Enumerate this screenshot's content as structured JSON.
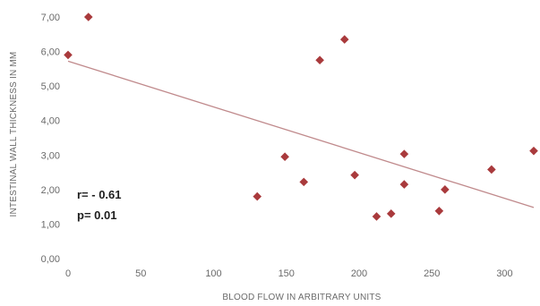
{
  "chart_data": {
    "type": "scatter",
    "title": "",
    "xlabel": "BLOOD FLOW IN ARBITRARY UNITS",
    "ylabel": "INTESTINAL WALL THICKNESS IN MM",
    "xlim": [
      0,
      320
    ],
    "ylim": [
      0,
      7.0
    ],
    "x_ticks": [
      0,
      50,
      100,
      150,
      200,
      250,
      300
    ],
    "x_tick_labels": [
      "0",
      "50",
      "100",
      "150",
      "200",
      "250",
      "300"
    ],
    "y_ticks": [
      0,
      1,
      2,
      3,
      4,
      5,
      6,
      7
    ],
    "y_tick_labels": [
      "0,00",
      "1,00",
      "2,00",
      "3,00",
      "4,00",
      "5,00",
      "6,00",
      "7,00"
    ],
    "grid": false,
    "legend": "none",
    "series": [
      {
        "points": [
          {
            "x": 0,
            "y": 5.9
          },
          {
            "x": 14,
            "y": 7.0
          },
          {
            "x": 130,
            "y": 1.8
          },
          {
            "x": 149,
            "y": 2.95
          },
          {
            "x": 162,
            "y": 2.22
          },
          {
            "x": 173,
            "y": 5.75
          },
          {
            "x": 190,
            "y": 6.35
          },
          {
            "x": 197,
            "y": 2.42
          },
          {
            "x": 212,
            "y": 1.22
          },
          {
            "x": 222,
            "y": 1.3
          },
          {
            "x": 231,
            "y": 3.03
          },
          {
            "x": 231,
            "y": 2.15
          },
          {
            "x": 255,
            "y": 1.38
          },
          {
            "x": 259,
            "y": 2.0
          },
          {
            "x": 291,
            "y": 2.58
          },
          {
            "x": 320,
            "y": 3.12
          }
        ],
        "marker": "diamond",
        "color": "#a93a3c"
      }
    ],
    "trendline": {
      "type": "linear",
      "x_start": 0,
      "y_start": 5.72,
      "x_end": 320,
      "y_end": 1.48,
      "color": "#c08a8c"
    },
    "annotations": [
      "r= - 0.61",
      "p= 0.01"
    ]
  }
}
